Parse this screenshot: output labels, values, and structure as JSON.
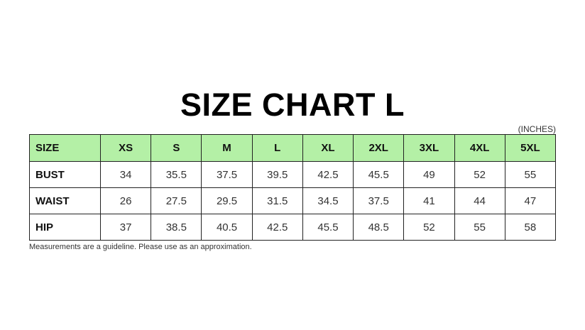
{
  "title": "SIZE CHART L",
  "units": "(INCHES)",
  "table": {
    "header": [
      "SIZE",
      "XS",
      "S",
      "M",
      "L",
      "XL",
      "2XL",
      "3XL",
      "4XL",
      "5XL"
    ],
    "rows": [
      {
        "label": "BUST",
        "values": [
          "34",
          "35.5",
          "37.5",
          "39.5",
          "42.5",
          "45.5",
          "49",
          "52",
          "55"
        ]
      },
      {
        "label": "WAIST",
        "values": [
          "26",
          "27.5",
          "29.5",
          "31.5",
          "34.5",
          "37.5",
          "41",
          "44",
          "47"
        ]
      },
      {
        "label": "HIP",
        "values": [
          "37",
          "38.5",
          "40.5",
          "42.5",
          "45.5",
          "48.5",
          "52",
          "55",
          "58"
        ]
      }
    ]
  },
  "note": "Measurements are a guideline. Please use as an approximation.",
  "colors": {
    "header_bg": "#b4f0a6",
    "border": "#222222"
  }
}
